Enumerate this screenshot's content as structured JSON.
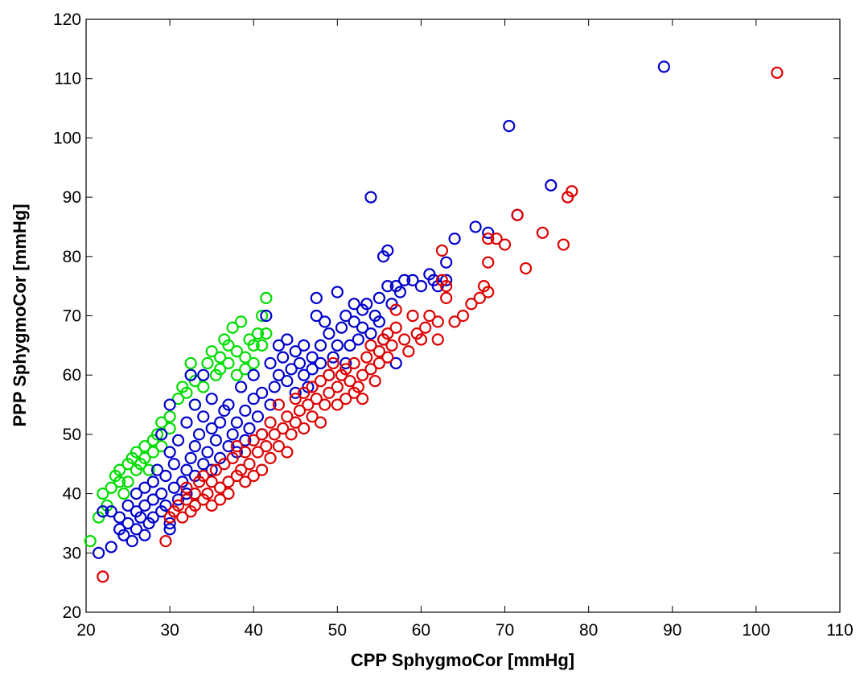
{
  "chart_data": {
    "type": "scatter",
    "title": "",
    "xlabel": "CPP SphygmoCor [mmHg]",
    "ylabel": "PPP SphygmoCor [mmHg]",
    "xlim": [
      20,
      110
    ],
    "ylim": [
      20,
      120
    ],
    "xticks": [
      20,
      30,
      40,
      50,
      60,
      70,
      80,
      90,
      100,
      110
    ],
    "yticks": [
      20,
      30,
      40,
      50,
      60,
      70,
      80,
      90,
      100,
      110,
      120
    ],
    "grid": false,
    "legend": "none",
    "marker": "open-circle",
    "series": [
      {
        "color": "#00dd00",
        "points": [
          [
            20.5,
            32
          ],
          [
            21.5,
            36
          ],
          [
            22,
            40
          ],
          [
            22.5,
            38
          ],
          [
            23,
            41
          ],
          [
            23.5,
            43
          ],
          [
            24,
            42
          ],
          [
            24,
            44
          ],
          [
            24.5,
            40
          ],
          [
            25,
            45
          ],
          [
            25,
            42
          ],
          [
            25.5,
            46
          ],
          [
            26,
            44
          ],
          [
            26,
            47
          ],
          [
            26.5,
            45
          ],
          [
            27,
            48
          ],
          [
            27,
            46
          ],
          [
            27.5,
            44
          ],
          [
            28,
            49
          ],
          [
            28,
            47
          ],
          [
            28.5,
            50
          ],
          [
            29,
            48
          ],
          [
            29,
            52
          ],
          [
            30,
            53
          ],
          [
            30,
            51
          ],
          [
            31,
            56
          ],
          [
            31.5,
            58
          ],
          [
            32,
            57
          ],
          [
            32.5,
            60
          ],
          [
            32.5,
            62
          ],
          [
            33,
            55
          ],
          [
            34,
            58
          ],
          [
            34.5,
            62
          ],
          [
            35,
            64
          ],
          [
            35.5,
            60
          ],
          [
            36,
            63
          ],
          [
            36.5,
            66
          ],
          [
            37,
            62
          ],
          [
            37,
            65
          ],
          [
            37.5,
            68
          ],
          [
            38,
            60
          ],
          [
            38,
            64
          ],
          [
            38.5,
            69
          ],
          [
            39,
            61
          ],
          [
            39,
            63
          ],
          [
            39.5,
            66
          ],
          [
            40,
            62
          ],
          [
            40,
            65
          ],
          [
            40.5,
            67
          ],
          [
            41,
            70
          ],
          [
            41.5,
            67
          ],
          [
            41.5,
            73
          ],
          [
            41,
            65
          ],
          [
            36,
            61
          ],
          [
            33,
            59
          ]
        ]
      },
      {
        "color": "#0000cc",
        "points": [
          [
            21.5,
            30
          ],
          [
            22,
            37
          ],
          [
            23,
            31
          ],
          [
            23,
            37
          ],
          [
            24,
            34
          ],
          [
            24,
            36
          ],
          [
            24.5,
            33
          ],
          [
            25,
            35
          ],
          [
            25,
            38
          ],
          [
            25.5,
            32
          ],
          [
            26,
            34
          ],
          [
            26,
            37
          ],
          [
            26,
            40
          ],
          [
            26.5,
            36
          ],
          [
            27,
            33
          ],
          [
            27,
            38
          ],
          [
            27,
            41
          ],
          [
            27.5,
            35
          ],
          [
            28,
            39
          ],
          [
            28,
            42
          ],
          [
            28,
            36
          ],
          [
            28.5,
            44
          ],
          [
            29,
            37
          ],
          [
            29,
            40
          ],
          [
            29,
            50
          ],
          [
            29.5,
            38
          ],
          [
            29.5,
            43
          ],
          [
            30,
            35
          ],
          [
            30,
            34
          ],
          [
            30,
            47
          ],
          [
            30,
            55
          ],
          [
            30.5,
            41
          ],
          [
            30.5,
            45
          ],
          [
            31,
            39
          ],
          [
            31,
            49
          ],
          [
            31.5,
            42
          ],
          [
            32,
            44
          ],
          [
            32,
            52
          ],
          [
            32,
            40
          ],
          [
            32.5,
            46
          ],
          [
            32.5,
            60
          ],
          [
            33,
            48
          ],
          [
            33,
            55
          ],
          [
            33,
            43
          ],
          [
            33.5,
            50
          ],
          [
            34,
            45
          ],
          [
            34,
            53
          ],
          [
            34,
            60
          ],
          [
            34.5,
            47
          ],
          [
            35,
            51
          ],
          [
            35,
            56
          ],
          [
            35,
            44
          ],
          [
            35.5,
            49
          ],
          [
            36,
            46
          ],
          [
            36,
            52
          ],
          [
            36.5,
            54
          ],
          [
            37,
            48
          ],
          [
            37,
            55
          ],
          [
            37.5,
            50
          ],
          [
            38,
            47
          ],
          [
            38,
            52
          ],
          [
            38.5,
            58
          ],
          [
            39,
            49
          ],
          [
            39,
            54
          ],
          [
            39.5,
            51
          ],
          [
            40,
            56
          ],
          [
            40,
            60
          ],
          [
            40.5,
            53
          ],
          [
            41,
            50
          ],
          [
            41,
            57
          ],
          [
            41.5,
            70
          ],
          [
            42,
            55
          ],
          [
            42,
            62
          ],
          [
            42.5,
            58
          ],
          [
            43,
            60
          ],
          [
            43,
            65
          ],
          [
            43.5,
            63
          ],
          [
            44,
            59
          ],
          [
            44,
            66
          ],
          [
            44.5,
            61
          ],
          [
            45,
            64
          ],
          [
            45,
            57
          ],
          [
            45.5,
            62
          ],
          [
            46,
            60
          ],
          [
            46,
            65
          ],
          [
            46.5,
            58
          ],
          [
            47,
            63
          ],
          [
            47,
            61
          ],
          [
            47.5,
            73
          ],
          [
            47.5,
            70
          ],
          [
            48,
            65
          ],
          [
            48,
            62
          ],
          [
            48.5,
            69
          ],
          [
            49,
            67
          ],
          [
            49,
            60
          ],
          [
            49.5,
            63
          ],
          [
            50,
            74
          ],
          [
            50,
            65
          ],
          [
            50.5,
            68
          ],
          [
            51,
            70
          ],
          [
            51,
            62
          ],
          [
            51.5,
            65
          ],
          [
            52,
            69
          ],
          [
            52,
            72
          ],
          [
            52.5,
            66
          ],
          [
            53,
            68
          ],
          [
            53,
            71
          ],
          [
            53.5,
            72
          ],
          [
            54,
            90
          ],
          [
            54,
            67
          ],
          [
            54.5,
            70
          ],
          [
            55,
            73
          ],
          [
            55,
            69
          ],
          [
            55.5,
            66
          ],
          [
            55.5,
            80
          ],
          [
            56,
            81
          ],
          [
            56,
            75
          ],
          [
            56.5,
            72
          ],
          [
            57,
            75
          ],
          [
            57,
            62
          ],
          [
            57.5,
            74
          ],
          [
            58,
            76
          ],
          [
            59,
            76
          ],
          [
            60,
            75
          ],
          [
            61,
            77
          ],
          [
            61.5,
            76
          ],
          [
            62,
            75
          ],
          [
            63,
            79
          ],
          [
            63,
            76
          ],
          [
            64,
            83
          ],
          [
            66.5,
            85
          ],
          [
            68,
            84
          ],
          [
            70.5,
            102
          ],
          [
            71.5,
            87
          ],
          [
            75.5,
            92
          ],
          [
            89,
            112
          ]
        ]
      },
      {
        "color": "#dd0000",
        "points": [
          [
            22,
            26
          ],
          [
            29.5,
            32
          ],
          [
            30,
            36
          ],
          [
            30.5,
            37
          ],
          [
            31,
            38
          ],
          [
            31.5,
            36
          ],
          [
            32,
            39
          ],
          [
            32,
            41
          ],
          [
            32.5,
            37
          ],
          [
            33,
            40
          ],
          [
            33,
            38
          ],
          [
            33.5,
            42
          ],
          [
            34,
            39
          ],
          [
            34,
            43
          ],
          [
            34.5,
            40
          ],
          [
            35,
            38
          ],
          [
            35,
            42
          ],
          [
            35.5,
            44
          ],
          [
            36,
            41
          ],
          [
            36,
            39
          ],
          [
            36.5,
            45
          ],
          [
            37,
            42
          ],
          [
            37,
            40
          ],
          [
            37.5,
            46
          ],
          [
            38,
            43
          ],
          [
            38,
            48
          ],
          [
            38.5,
            44
          ],
          [
            39,
            42
          ],
          [
            39,
            47
          ],
          [
            39.5,
            45
          ],
          [
            40,
            43
          ],
          [
            40,
            49
          ],
          [
            40.5,
            47
          ],
          [
            41,
            44
          ],
          [
            41,
            50
          ],
          [
            41.5,
            48
          ],
          [
            42,
            46
          ],
          [
            42,
            52
          ],
          [
            42.5,
            50
          ],
          [
            43,
            48
          ],
          [
            43,
            55
          ],
          [
            43.5,
            51
          ],
          [
            44,
            47
          ],
          [
            44,
            53
          ],
          [
            44.5,
            50
          ],
          [
            45,
            52
          ],
          [
            45,
            56
          ],
          [
            45.5,
            54
          ],
          [
            46,
            51
          ],
          [
            46,
            57
          ],
          [
            46.5,
            55
          ],
          [
            47,
            53
          ],
          [
            47,
            58
          ],
          [
            47.5,
            56
          ],
          [
            48,
            52
          ],
          [
            48,
            59
          ],
          [
            48.5,
            55
          ],
          [
            49,
            57
          ],
          [
            49,
            60
          ],
          [
            49.5,
            62
          ],
          [
            50,
            55
          ],
          [
            50,
            58
          ],
          [
            50.5,
            60
          ],
          [
            51,
            56
          ],
          [
            51,
            61
          ],
          [
            51.5,
            59
          ],
          [
            52,
            57
          ],
          [
            52,
            62
          ],
          [
            52.5,
            58
          ],
          [
            53,
            60
          ],
          [
            53,
            56
          ],
          [
            53.5,
            63
          ],
          [
            54,
            61
          ],
          [
            54,
            65
          ],
          [
            54.5,
            59
          ],
          [
            55,
            64
          ],
          [
            55,
            62
          ],
          [
            55.5,
            66
          ],
          [
            56,
            63
          ],
          [
            56,
            67
          ],
          [
            56.5,
            65
          ],
          [
            57,
            68
          ],
          [
            57,
            71
          ],
          [
            58,
            66
          ],
          [
            58.5,
            64
          ],
          [
            59,
            70
          ],
          [
            59.5,
            67
          ],
          [
            60,
            66
          ],
          [
            60.5,
            68
          ],
          [
            61,
            70
          ],
          [
            62,
            66
          ],
          [
            62,
            69
          ],
          [
            62.5,
            81
          ],
          [
            62.5,
            76
          ],
          [
            63,
            73
          ],
          [
            63,
            75
          ],
          [
            64,
            69
          ],
          [
            65,
            70
          ],
          [
            66,
            72
          ],
          [
            67,
            73
          ],
          [
            67.5,
            75
          ],
          [
            68,
            74
          ],
          [
            68,
            79
          ],
          [
            68,
            83
          ],
          [
            69,
            83
          ],
          [
            70,
            82
          ],
          [
            71.5,
            87
          ],
          [
            72.5,
            78
          ],
          [
            74.5,
            84
          ],
          [
            77,
            82
          ],
          [
            77.5,
            90
          ],
          [
            78,
            91
          ],
          [
            102.5,
            111
          ]
        ]
      }
    ]
  }
}
